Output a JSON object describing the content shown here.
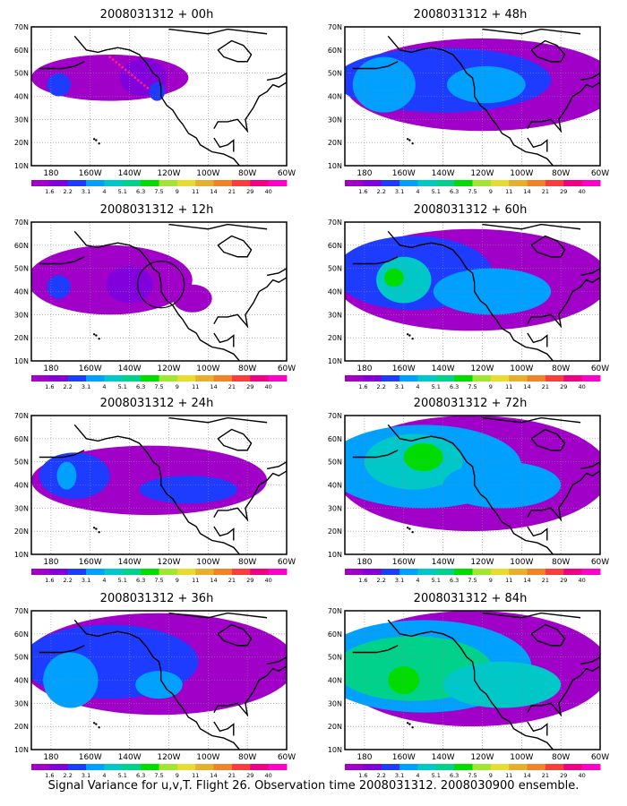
{
  "panels": [
    {
      "title": "2008031312 + 00h",
      "level": 0
    },
    {
      "title": "2008031312 + 48h",
      "level": 4
    },
    {
      "title": "2008031312 + 12h",
      "level": 1
    },
    {
      "title": "2008031312 + 60h",
      "level": 5
    },
    {
      "title": "2008031312 + 24h",
      "level": 2
    },
    {
      "title": "2008031312 + 72h",
      "level": 6
    },
    {
      "title": "2008031312 + 36h",
      "level": 3
    },
    {
      "title": "2008031312 + 84h",
      "level": 7
    }
  ],
  "lat_labels": [
    "70N",
    "60N",
    "50N",
    "40N",
    "30N",
    "20N",
    "10N"
  ],
  "lon_labels": [
    "180",
    "160W",
    "140W",
    "120W",
    "100W",
    "80W",
    "60W"
  ],
  "colorbar": {
    "labels": [
      "1.6",
      "2.2",
      "3.1",
      "4",
      "5.1",
      "6.3",
      "7.5",
      "9",
      "11",
      "14",
      "21",
      "29",
      "40"
    ],
    "colors": [
      "#a000c8",
      "#8200dc",
      "#1e3cff",
      "#00a0ff",
      "#00c8c8",
      "#00d28c",
      "#00dc00",
      "#a0e632",
      "#e6dc32",
      "#e6af2d",
      "#f08228",
      "#fa3c3c",
      "#f00082",
      "#ff00c8"
    ]
  },
  "footer": "Signal Variance for u,v,T. Flight 26. Observation time 2008031312. 2008030900 ensemble."
}
